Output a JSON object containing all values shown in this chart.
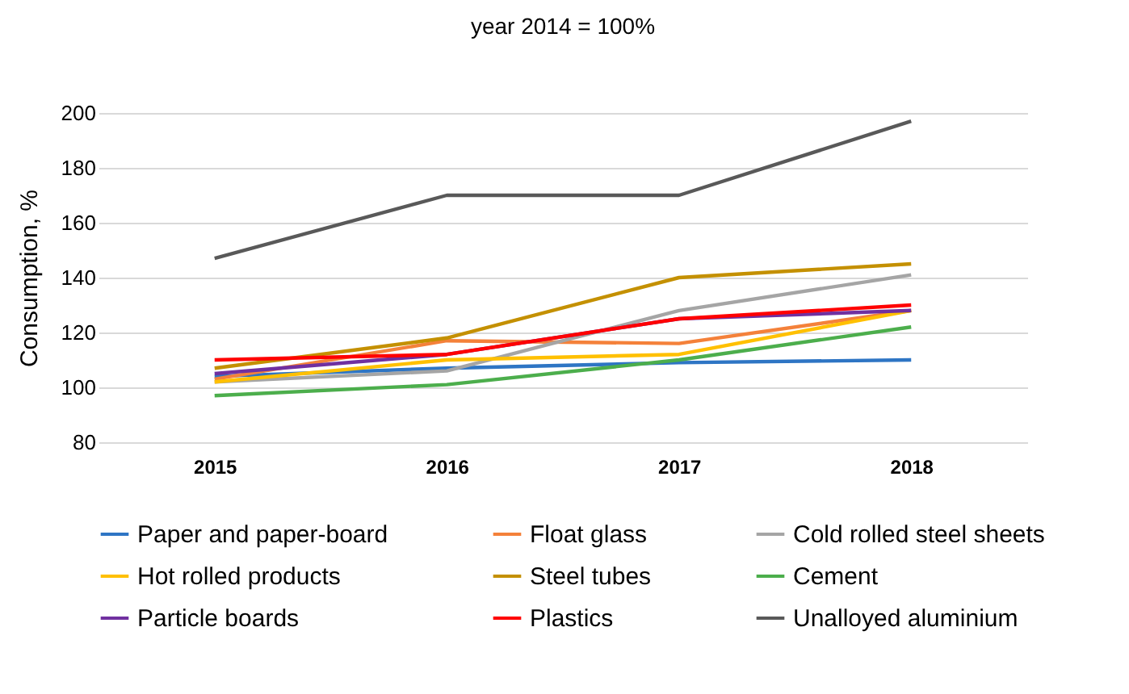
{
  "chart_data": {
    "type": "line",
    "title": "year 2014 = 100%",
    "ylabel": "Consumption, %",
    "categories": [
      "2015",
      "2016",
      "2017",
      "2018"
    ],
    "series": [
      {
        "name": "Paper and paper-board",
        "color": "#2e75c4",
        "values": [
          104,
          107,
          109,
          110
        ]
      },
      {
        "name": "Float glass",
        "color": "#f4813a",
        "values": [
          103,
          117,
          116,
          128
        ]
      },
      {
        "name": "Cold rolled steel sheets",
        "color": "#a5a5a5",
        "values": [
          102,
          106,
          128,
          141
        ]
      },
      {
        "name": "Hot rolled products",
        "color": "#ffc000",
        "values": [
          102,
          110,
          112,
          128
        ]
      },
      {
        "name": "Steel tubes",
        "color": "#c49000",
        "values": [
          107,
          118,
          140,
          145
        ]
      },
      {
        "name": "Cement",
        "color": "#4cae4c",
        "values": [
          97,
          101,
          110,
          122
        ]
      },
      {
        "name": "Particle boards",
        "color": "#7030a0",
        "values": [
          105,
          112,
          125,
          128
        ]
      },
      {
        "name": "Plastics",
        "color": "#ff0000",
        "values": [
          110,
          112,
          125,
          130
        ]
      },
      {
        "name": "Unalloyed aluminium",
        "color": "#595959",
        "values": [
          147,
          170,
          170,
          197
        ]
      }
    ],
    "ylim": [
      80,
      200
    ],
    "yticks": [
      80,
      100,
      120,
      140,
      160,
      180,
      200
    ],
    "grid": "y",
    "legend": "bottom",
    "marker": "none",
    "line_style": "solid"
  }
}
